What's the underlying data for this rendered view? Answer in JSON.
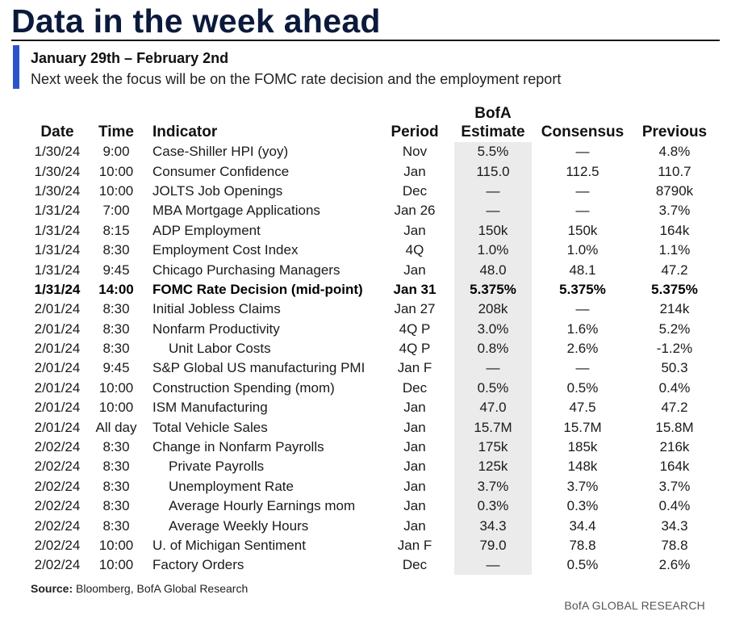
{
  "title": "Data in the week ahead",
  "subtitle": "January 29th – February 2nd",
  "description": "Next week the focus will be on the FOMC rate decision and the employment report",
  "headers": {
    "date": "Date",
    "time": "Time",
    "indicator": "Indicator",
    "period": "Period",
    "estimate_top": "BofA",
    "estimate_bottom": "Estimate",
    "consensus": "Consensus",
    "previous": "Previous"
  },
  "rows": [
    {
      "date": "1/30/24",
      "time": "9:00",
      "indicator": "Case-Shiller HPI (yoy)",
      "period": "Nov",
      "estimate": "5.5%",
      "consensus": "—",
      "previous": "4.8%"
    },
    {
      "date": "1/30/24",
      "time": "10:00",
      "indicator": "Consumer Confidence",
      "period": "Jan",
      "estimate": "115.0",
      "consensus": "112.5",
      "previous": "110.7"
    },
    {
      "date": "1/30/24",
      "time": "10:00",
      "indicator": "JOLTS Job Openings",
      "period": "Dec",
      "estimate": "—",
      "consensus": "—",
      "previous": "8790k"
    },
    {
      "date": "1/31/24",
      "time": "7:00",
      "indicator": "MBA Mortgage Applications",
      "period": "Jan 26",
      "estimate": "—",
      "consensus": "—",
      "previous": "3.7%"
    },
    {
      "date": "1/31/24",
      "time": "8:15",
      "indicator": "ADP Employment",
      "period": "Jan",
      "estimate": "150k",
      "consensus": "150k",
      "previous": "164k"
    },
    {
      "date": "1/31/24",
      "time": "8:30",
      "indicator": "Employment Cost Index",
      "period": "4Q",
      "estimate": "1.0%",
      "consensus": "1.0%",
      "previous": "1.1%"
    },
    {
      "date": "1/31/24",
      "time": "9:45",
      "indicator": "Chicago Purchasing Managers",
      "period": "Jan",
      "estimate": "48.0",
      "consensus": "48.1",
      "previous": "47.2"
    },
    {
      "date": "1/31/24",
      "time": "14:00",
      "indicator": "FOMC Rate Decision (mid-point)",
      "period": "Jan 31",
      "estimate": "5.375%",
      "consensus": "5.375%",
      "previous": "5.375%"
    },
    {
      "date": "2/01/24",
      "time": "8:30",
      "indicator": "Initial Jobless Claims",
      "period": "Jan 27",
      "estimate": "208k",
      "consensus": "—",
      "previous": "214k"
    },
    {
      "date": "2/01/24",
      "time": "8:30",
      "indicator": "Nonfarm Productivity",
      "period": "4Q P",
      "estimate": "3.0%",
      "consensus": "1.6%",
      "previous": "5.2%"
    },
    {
      "date": "2/01/24",
      "time": "8:30",
      "indicator": "Unit Labor Costs",
      "period": "4Q P",
      "estimate": "0.8%",
      "consensus": "2.6%",
      "previous": "-1.2%"
    },
    {
      "date": "2/01/24",
      "time": "9:45",
      "indicator": "S&P Global US manufacturing PMI",
      "period": "Jan F",
      "estimate": "—",
      "consensus": "—",
      "previous": "50.3"
    },
    {
      "date": "2/01/24",
      "time": "10:00",
      "indicator": "Construction Spending (mom)",
      "period": "Dec",
      "estimate": "0.5%",
      "consensus": "0.5%",
      "previous": "0.4%"
    },
    {
      "date": "2/01/24",
      "time": "10:00",
      "indicator": "ISM Manufacturing",
      "period": "Jan",
      "estimate": "47.0",
      "consensus": "47.5",
      "previous": "47.2"
    },
    {
      "date": "2/01/24",
      "time": "All day",
      "indicator": "Total Vehicle Sales",
      "period": "Jan",
      "estimate": "15.7M",
      "consensus": "15.7M",
      "previous": "15.8M"
    },
    {
      "date": "2/02/24",
      "time": "8:30",
      "indicator": "Change in Nonfarm Payrolls",
      "period": "Jan",
      "estimate": "175k",
      "consensus": "185k",
      "previous": "216k"
    },
    {
      "date": "2/02/24",
      "time": "8:30",
      "indicator": "Private Payrolls",
      "period": "Jan",
      "estimate": "125k",
      "consensus": "148k",
      "previous": "164k"
    },
    {
      "date": "2/02/24",
      "time": "8:30",
      "indicator": "Unemployment Rate",
      "period": "Jan",
      "estimate": "3.7%",
      "consensus": "3.7%",
      "previous": "3.7%"
    },
    {
      "date": "2/02/24",
      "time": "8:30",
      "indicator": "Average Hourly Earnings mom",
      "period": "Jan",
      "estimate": "0.3%",
      "consensus": "0.3%",
      "previous": "0.4%"
    },
    {
      "date": "2/02/24",
      "time": "8:30",
      "indicator": "Average Weekly Hours",
      "period": "Jan",
      "estimate": "34.3",
      "consensus": "34.4",
      "previous": "34.3"
    },
    {
      "date": "2/02/24",
      "time": "10:00",
      "indicator": "U. of Michigan Sentiment",
      "period": "Jan F",
      "estimate": "79.0",
      "consensus": "78.8",
      "previous": "78.8"
    },
    {
      "date": "2/02/24",
      "time": "10:00",
      "indicator": "Factory Orders",
      "period": "Dec",
      "estimate": "—",
      "consensus": "0.5%",
      "previous": "2.6%"
    }
  ],
  "highlight_row_index": 7,
  "indented_row_indices": [
    10,
    16,
    17,
    18,
    19
  ],
  "source_label": "Source:",
  "source_text": " Bloomberg, BofA Global Research",
  "brand": "BofA GLOBAL RESEARCH",
  "colors": {
    "title": "#0b1a3c",
    "accent_bar": "#2a55c8",
    "estimate_column_bg": "#ebebeb"
  }
}
